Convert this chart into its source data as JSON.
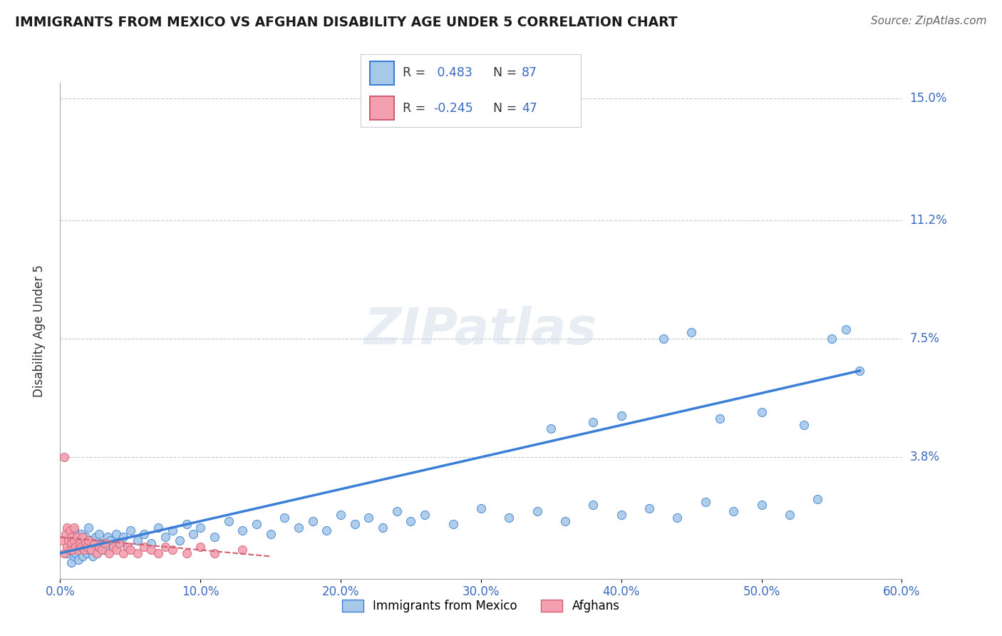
{
  "title": "IMMIGRANTS FROM MEXICO VS AFGHAN DISABILITY AGE UNDER 5 CORRELATION CHART",
  "source": "Source: ZipAtlas.com",
  "ylabel": "Disability Age Under 5",
  "legend_label_1": "Immigrants from Mexico",
  "legend_label_2": "Afghans",
  "R1": 0.483,
  "N1": 87,
  "R2": -0.245,
  "N2": 47,
  "xlim": [
    0.0,
    0.6
  ],
  "ylim": [
    0.0,
    0.155
  ],
  "xticks": [
    0.0,
    0.1,
    0.2,
    0.3,
    0.4,
    0.5,
    0.6
  ],
  "yticks": [
    0.0,
    0.038,
    0.075,
    0.112,
    0.15
  ],
  "ytick_labels": [
    "",
    "3.8%",
    "7.5%",
    "11.2%",
    "15.0%"
  ],
  "xtick_labels": [
    "0.0%",
    "10.0%",
    "20.0%",
    "30.0%",
    "40.0%",
    "50.0%",
    "60.0%"
  ],
  "color_mexico": "#a8c8e8",
  "color_afghan": "#f4a0b0",
  "color_line_mexico": "#3a7fd5",
  "color_line_afghan": "#d06070",
  "background_color": "#ffffff",
  "title_color": "#1a1a2e",
  "axis_color": "#3a6abf",
  "watermark": "ZIPatlas",
  "mexico_x": [
    0.005,
    0.007,
    0.008,
    0.009,
    0.01,
    0.01,
    0.011,
    0.012,
    0.013,
    0.014,
    0.015,
    0.015,
    0.016,
    0.017,
    0.018,
    0.019,
    0.02,
    0.02,
    0.021,
    0.022,
    0.023,
    0.024,
    0.025,
    0.026,
    0.027,
    0.028,
    0.03,
    0.032,
    0.034,
    0.036,
    0.038,
    0.04,
    0.042,
    0.045,
    0.048,
    0.05,
    0.055,
    0.06,
    0.065,
    0.07,
    0.075,
    0.08,
    0.085,
    0.09,
    0.095,
    0.1,
    0.11,
    0.12,
    0.13,
    0.14,
    0.15,
    0.16,
    0.17,
    0.18,
    0.19,
    0.2,
    0.21,
    0.22,
    0.23,
    0.24,
    0.25,
    0.26,
    0.28,
    0.3,
    0.32,
    0.34,
    0.36,
    0.38,
    0.4,
    0.42,
    0.44,
    0.46,
    0.48,
    0.5,
    0.52,
    0.54,
    0.35,
    0.38,
    0.4,
    0.43,
    0.45,
    0.47,
    0.5,
    0.53,
    0.55,
    0.56,
    0.57
  ],
  "mexico_y": [
    0.008,
    0.012,
    0.005,
    0.01,
    0.007,
    0.015,
    0.008,
    0.012,
    0.006,
    0.01,
    0.009,
    0.014,
    0.007,
    0.011,
    0.013,
    0.008,
    0.01,
    0.016,
    0.009,
    0.012,
    0.007,
    0.011,
    0.013,
    0.008,
    0.01,
    0.014,
    0.011,
    0.009,
    0.013,
    0.012,
    0.01,
    0.014,
    0.011,
    0.013,
    0.01,
    0.015,
    0.012,
    0.014,
    0.011,
    0.016,
    0.013,
    0.015,
    0.012,
    0.017,
    0.014,
    0.016,
    0.013,
    0.018,
    0.015,
    0.017,
    0.014,
    0.019,
    0.016,
    0.018,
    0.015,
    0.02,
    0.017,
    0.019,
    0.016,
    0.021,
    0.018,
    0.02,
    0.017,
    0.022,
    0.019,
    0.021,
    0.018,
    0.023,
    0.02,
    0.022,
    0.019,
    0.024,
    0.021,
    0.023,
    0.02,
    0.025,
    0.047,
    0.049,
    0.051,
    0.075,
    0.077,
    0.05,
    0.052,
    0.048,
    0.075,
    0.078,
    0.065
  ],
  "afghan_x": [
    0.002,
    0.003,
    0.004,
    0.005,
    0.005,
    0.006,
    0.007,
    0.007,
    0.008,
    0.008,
    0.009,
    0.01,
    0.01,
    0.011,
    0.012,
    0.013,
    0.014,
    0.015,
    0.016,
    0.017,
    0.018,
    0.019,
    0.02,
    0.022,
    0.024,
    0.026,
    0.028,
    0.03,
    0.032,
    0.035,
    0.038,
    0.04,
    0.042,
    0.045,
    0.048,
    0.05,
    0.055,
    0.06,
    0.065,
    0.07,
    0.075,
    0.08,
    0.09,
    0.1,
    0.11,
    0.13,
    0.003
  ],
  "afghan_y": [
    0.012,
    0.008,
    0.014,
    0.01,
    0.016,
    0.012,
    0.009,
    0.015,
    0.011,
    0.013,
    0.009,
    0.012,
    0.016,
    0.01,
    0.013,
    0.009,
    0.011,
    0.01,
    0.013,
    0.009,
    0.011,
    0.01,
    0.012,
    0.009,
    0.011,
    0.008,
    0.01,
    0.009,
    0.011,
    0.008,
    0.01,
    0.009,
    0.011,
    0.008,
    0.01,
    0.009,
    0.008,
    0.01,
    0.009,
    0.008,
    0.01,
    0.009,
    0.008,
    0.01,
    0.008,
    0.009,
    0.038
  ],
  "mexico_trend_x": [
    0.0,
    0.57
  ],
  "mexico_trend_y": [
    0.008,
    0.065
  ],
  "afghan_trend_x": [
    0.0,
    0.15
  ],
  "afghan_trend_y": [
    0.013,
    0.007
  ]
}
